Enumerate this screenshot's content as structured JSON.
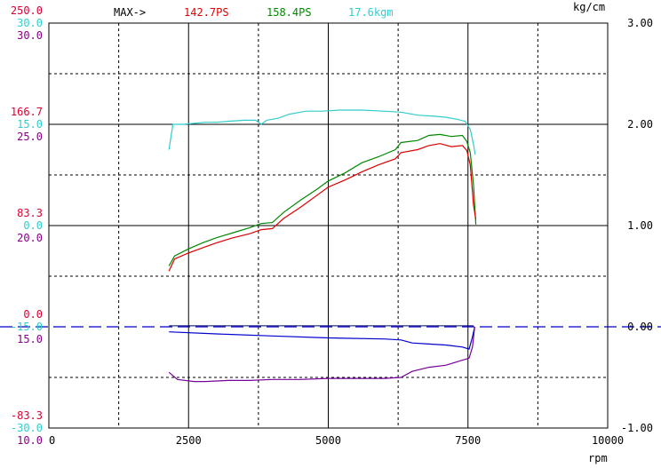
{
  "chart_data": {
    "type": "line",
    "x_axis": {
      "min": 0,
      "max": 10000,
      "ticks": [
        "0",
        "2500",
        "5000",
        "7500",
        "10000"
      ],
      "unit_label": "rpm"
    },
    "grid": "on",
    "header": {
      "prefix": "MAX->",
      "max_ps_red": "142.7PS",
      "max_ps_green": "158.4PS",
      "max_kgm": "17.6kgm"
    },
    "right_axis": {
      "unit_label": "kg/cm",
      "min": -1.0,
      "max": 3.0,
      "ticks": [
        "3.00",
        "2.00",
        "1.00",
        "0.00",
        "-1.00"
      ]
    },
    "left_scales": [
      {
        "color": "#dd0033",
        "labels": [
          {
            "text": "250.0",
            "v": 250.0
          },
          {
            "text": "166.7",
            "v": 166.7
          },
          {
            "text": "83.3",
            "v": 83.3
          },
          {
            "text": "0.0",
            "v": 0.0
          },
          {
            "text": "-83.3",
            "v": -83.3
          }
        ],
        "min": -125,
        "max": 250
      },
      {
        "color": "#33cccc",
        "labels": [
          {
            "text": "30.0",
            "v": 30.0
          },
          {
            "text": "15.0",
            "v": 15.0
          },
          {
            "text": "0.0",
            "v": 0.0
          },
          {
            "text": "-15.0",
            "v": -15.0
          },
          {
            "text": "-30.0",
            "v": -30.0
          }
        ],
        "min": -30,
        "max": 30
      },
      {
        "color": "#880088",
        "labels": [
          {
            "text": "30.0",
            "v": 30.0
          },
          {
            "text": "25.0",
            "v": 25.0
          },
          {
            "text": "20.0",
            "v": 20.0
          },
          {
            "text": "15.0",
            "v": 15.0
          },
          {
            "text": "10.0",
            "v": 10.0
          }
        ],
        "min": 10,
        "max": 30
      }
    ],
    "zero_line": {
      "value": 0.0,
      "color": "#0000cc"
    },
    "series": [
      {
        "color": "#33cccc",
        "scale": "right",
        "values": [
          [
            2150,
            1.75
          ],
          [
            2220,
            2.0
          ],
          [
            2400,
            2.0
          ],
          [
            2600,
            2.01
          ],
          [
            2800,
            2.02
          ],
          [
            3000,
            2.02
          ],
          [
            3200,
            2.03
          ],
          [
            3500,
            2.04
          ],
          [
            3700,
            2.04
          ],
          [
            3800,
            2.0
          ],
          [
            3900,
            2.04
          ],
          [
            4100,
            2.06
          ],
          [
            4300,
            2.1
          ],
          [
            4600,
            2.13
          ],
          [
            4900,
            2.13
          ],
          [
            5200,
            2.14
          ],
          [
            5600,
            2.14
          ],
          [
            6000,
            2.13
          ],
          [
            6300,
            2.12
          ],
          [
            6600,
            2.09
          ],
          [
            6900,
            2.08
          ],
          [
            7100,
            2.07
          ],
          [
            7300,
            2.05
          ],
          [
            7450,
            2.03
          ],
          [
            7540,
            1.95
          ],
          [
            7600,
            1.8
          ],
          [
            7630,
            1.7
          ]
        ]
      },
      {
        "color": "#008800",
        "scale": "right",
        "values": [
          [
            2150,
            0.6
          ],
          [
            2250,
            0.7
          ],
          [
            2500,
            0.77
          ],
          [
            2750,
            0.83
          ],
          [
            3000,
            0.88
          ],
          [
            3300,
            0.93
          ],
          [
            3600,
            0.98
          ],
          [
            3800,
            1.02
          ],
          [
            4000,
            1.03
          ],
          [
            4200,
            1.13
          ],
          [
            4500,
            1.25
          ],
          [
            4800,
            1.36
          ],
          [
            5000,
            1.44
          ],
          [
            5300,
            1.52
          ],
          [
            5600,
            1.62
          ],
          [
            5900,
            1.68
          ],
          [
            6200,
            1.75
          ],
          [
            6300,
            1.82
          ],
          [
            6600,
            1.84
          ],
          [
            6800,
            1.89
          ],
          [
            7000,
            1.9
          ],
          [
            7200,
            1.88
          ],
          [
            7400,
            1.89
          ],
          [
            7480,
            1.83
          ],
          [
            7540,
            1.72
          ],
          [
            7600,
            1.4
          ],
          [
            7640,
            1.01
          ]
        ]
      },
      {
        "color": "#dd0000",
        "scale": "right",
        "values": [
          [
            2150,
            0.55
          ],
          [
            2250,
            0.67
          ],
          [
            2500,
            0.73
          ],
          [
            2750,
            0.78
          ],
          [
            3000,
            0.83
          ],
          [
            3300,
            0.88
          ],
          [
            3600,
            0.92
          ],
          [
            3800,
            0.96
          ],
          [
            4000,
            0.97
          ],
          [
            4200,
            1.07
          ],
          [
            4500,
            1.18
          ],
          [
            4800,
            1.3
          ],
          [
            5000,
            1.38
          ],
          [
            5300,
            1.45
          ],
          [
            5600,
            1.53
          ],
          [
            5900,
            1.6
          ],
          [
            6200,
            1.66
          ],
          [
            6300,
            1.72
          ],
          [
            6600,
            1.75
          ],
          [
            6800,
            1.79
          ],
          [
            7000,
            1.81
          ],
          [
            7200,
            1.78
          ],
          [
            7400,
            1.79
          ],
          [
            7480,
            1.74
          ],
          [
            7540,
            1.6
          ],
          [
            7600,
            1.2
          ],
          [
            7640,
            1.06
          ]
        ]
      },
      {
        "color": "#0000cc",
        "scale": "right",
        "values": [
          [
            2150,
            -0.05
          ],
          [
            3000,
            -0.07
          ],
          [
            4000,
            -0.09
          ],
          [
            5000,
            -0.11
          ],
          [
            6000,
            -0.12
          ],
          [
            6300,
            -0.13
          ],
          [
            6500,
            -0.16
          ],
          [
            6800,
            -0.17
          ],
          [
            7100,
            -0.18
          ],
          [
            7400,
            -0.2
          ],
          [
            7520,
            -0.22
          ],
          [
            7580,
            -0.1
          ],
          [
            7620,
            0.0
          ]
        ]
      },
      {
        "color": "#770099",
        "scale": "right",
        "values": [
          [
            2150,
            -0.45
          ],
          [
            2300,
            -0.52
          ],
          [
            2600,
            -0.54
          ],
          [
            2800,
            -0.54
          ],
          [
            3200,
            -0.53
          ],
          [
            3600,
            -0.53
          ],
          [
            4000,
            -0.52
          ],
          [
            4500,
            -0.52
          ],
          [
            5000,
            -0.51
          ],
          [
            5500,
            -0.51
          ],
          [
            6000,
            -0.51
          ],
          [
            6300,
            -0.5
          ],
          [
            6500,
            -0.44
          ],
          [
            6800,
            -0.4
          ],
          [
            7100,
            -0.38
          ],
          [
            7400,
            -0.33
          ],
          [
            7520,
            -0.31
          ],
          [
            7580,
            -0.2
          ],
          [
            7620,
            0.0
          ]
        ]
      }
    ]
  }
}
